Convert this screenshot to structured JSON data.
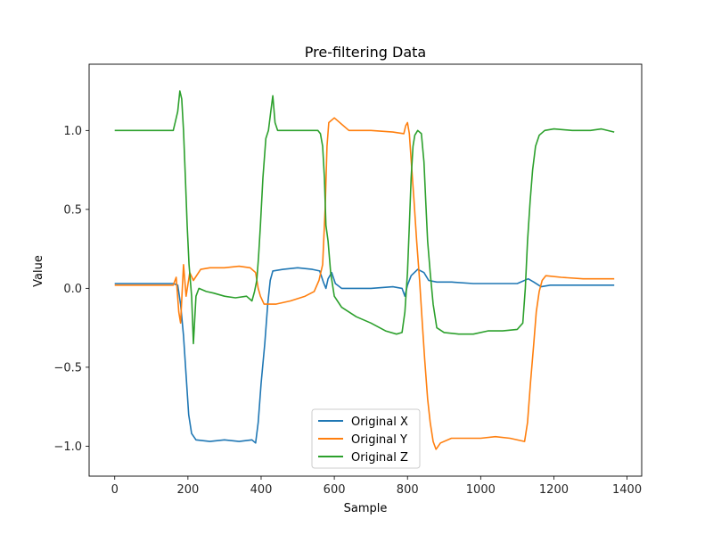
{
  "chart_data": {
    "type": "line",
    "title": "Pre-filtering Data",
    "xlabel": "Sample",
    "ylabel": "Value",
    "xlim": [
      -70,
      1440
    ],
    "ylim": [
      -1.19,
      1.42
    ],
    "xticks": [
      0,
      200,
      400,
      600,
      800,
      1000,
      1200,
      1400
    ],
    "xtick_labels": [
      "0",
      "200",
      "400",
      "600",
      "800",
      "1000",
      "1200",
      "1400"
    ],
    "yticks": [
      -1.0,
      -0.5,
      0.0,
      0.5,
      1.0
    ],
    "ytick_labels": [
      "−1.0",
      "−0.5",
      "0.0",
      "0.5",
      "1.0"
    ],
    "grid": false,
    "legend_position": "bottom-center",
    "series": [
      {
        "name": "Original X",
        "color": "#1f77b4",
        "points": [
          [
            0,
            0.03
          ],
          [
            160,
            0.03
          ],
          [
            172,
            0.02
          ],
          [
            180,
            -0.1
          ],
          [
            188,
            -0.3
          ],
          [
            195,
            -0.55
          ],
          [
            202,
            -0.8
          ],
          [
            210,
            -0.92
          ],
          [
            222,
            -0.96
          ],
          [
            260,
            -0.97
          ],
          [
            300,
            -0.96
          ],
          [
            340,
            -0.97
          ],
          [
            375,
            -0.96
          ],
          [
            385,
            -0.98
          ],
          [
            392,
            -0.85
          ],
          [
            400,
            -0.6
          ],
          [
            410,
            -0.35
          ],
          [
            418,
            -0.1
          ],
          [
            425,
            0.05
          ],
          [
            432,
            0.11
          ],
          [
            460,
            0.12
          ],
          [
            500,
            0.13
          ],
          [
            540,
            0.12
          ],
          [
            560,
            0.11
          ],
          [
            570,
            0.04
          ],
          [
            577,
            0.0
          ],
          [
            583,
            0.06
          ],
          [
            593,
            0.1
          ],
          [
            603,
            0.03
          ],
          [
            620,
            0.0
          ],
          [
            660,
            0.0
          ],
          [
            700,
            0.0
          ],
          [
            760,
            0.01
          ],
          [
            785,
            0.0
          ],
          [
            793,
            -0.05
          ],
          [
            800,
            0.02
          ],
          [
            810,
            0.08
          ],
          [
            828,
            0.12
          ],
          [
            845,
            0.1
          ],
          [
            858,
            0.05
          ],
          [
            880,
            0.04
          ],
          [
            920,
            0.04
          ],
          [
            980,
            0.03
          ],
          [
            1040,
            0.03
          ],
          [
            1100,
            0.03
          ],
          [
            1130,
            0.06
          ],
          [
            1145,
            0.04
          ],
          [
            1165,
            0.01
          ],
          [
            1190,
            0.02
          ],
          [
            1250,
            0.02
          ],
          [
            1300,
            0.02
          ],
          [
            1365,
            0.02
          ]
        ]
      },
      {
        "name": "Original Y",
        "color": "#ff7f0e",
        "points": [
          [
            0,
            0.02
          ],
          [
            160,
            0.02
          ],
          [
            168,
            0.07
          ],
          [
            175,
            -0.15
          ],
          [
            180,
            -0.22
          ],
          [
            188,
            0.15
          ],
          [
            195,
            -0.05
          ],
          [
            205,
            0.1
          ],
          [
            215,
            0.05
          ],
          [
            235,
            0.12
          ],
          [
            260,
            0.13
          ],
          [
            300,
            0.13
          ],
          [
            340,
            0.14
          ],
          [
            370,
            0.13
          ],
          [
            385,
            0.1
          ],
          [
            392,
            0.0
          ],
          [
            398,
            -0.05
          ],
          [
            408,
            -0.1
          ],
          [
            440,
            -0.1
          ],
          [
            480,
            -0.08
          ],
          [
            520,
            -0.05
          ],
          [
            545,
            -0.02
          ],
          [
            558,
            0.05
          ],
          [
            568,
            0.15
          ],
          [
            575,
            0.5
          ],
          [
            580,
            0.9
          ],
          [
            585,
            1.05
          ],
          [
            600,
            1.08
          ],
          [
            640,
            1.0
          ],
          [
            700,
            1.0
          ],
          [
            760,
            0.99
          ],
          [
            790,
            0.98
          ],
          [
            795,
            1.03
          ],
          [
            800,
            1.05
          ],
          [
            805,
            0.98
          ],
          [
            808,
            0.88
          ],
          [
            812,
            0.75
          ],
          [
            818,
            0.55
          ],
          [
            825,
            0.3
          ],
          [
            833,
            0.05
          ],
          [
            840,
            -0.2
          ],
          [
            847,
            -0.45
          ],
          [
            855,
            -0.7
          ],
          [
            862,
            -0.85
          ],
          [
            870,
            -0.97
          ],
          [
            878,
            -1.02
          ],
          [
            890,
            -0.98
          ],
          [
            920,
            -0.95
          ],
          [
            960,
            -0.95
          ],
          [
            1000,
            -0.95
          ],
          [
            1040,
            -0.94
          ],
          [
            1080,
            -0.95
          ],
          [
            1120,
            -0.97
          ],
          [
            1128,
            -0.85
          ],
          [
            1136,
            -0.6
          ],
          [
            1145,
            -0.35
          ],
          [
            1152,
            -0.15
          ],
          [
            1160,
            -0.02
          ],
          [
            1168,
            0.05
          ],
          [
            1178,
            0.08
          ],
          [
            1220,
            0.07
          ],
          [
            1280,
            0.06
          ],
          [
            1330,
            0.06
          ],
          [
            1365,
            0.06
          ]
        ]
      },
      {
        "name": "Original Z",
        "color": "#2ca02c",
        "points": [
          [
            0,
            1.0
          ],
          [
            40,
            1.0
          ],
          [
            100,
            1.0
          ],
          [
            160,
            1.0
          ],
          [
            165,
            1.05
          ],
          [
            172,
            1.12
          ],
          [
            178,
            1.25
          ],
          [
            183,
            1.2
          ],
          [
            188,
            1.0
          ],
          [
            193,
            0.7
          ],
          [
            198,
            0.4
          ],
          [
            203,
            0.15
          ],
          [
            210,
            -0.05
          ],
          [
            215,
            -0.35
          ],
          [
            222,
            -0.05
          ],
          [
            230,
            0.0
          ],
          [
            250,
            -0.02
          ],
          [
            270,
            -0.03
          ],
          [
            300,
            -0.05
          ],
          [
            330,
            -0.06
          ],
          [
            360,
            -0.05
          ],
          [
            375,
            -0.08
          ],
          [
            382,
            -0.02
          ],
          [
            388,
            0.05
          ],
          [
            393,
            0.2
          ],
          [
            398,
            0.4
          ],
          [
            405,
            0.7
          ],
          [
            413,
            0.95
          ],
          [
            420,
            1.0
          ],
          [
            428,
            1.15
          ],
          [
            432,
            1.22
          ],
          [
            438,
            1.05
          ],
          [
            445,
            1.0
          ],
          [
            480,
            1.0
          ],
          [
            520,
            1.0
          ],
          [
            555,
            1.0
          ],
          [
            562,
            0.98
          ],
          [
            568,
            0.9
          ],
          [
            573,
            0.7
          ],
          [
            577,
            0.4
          ],
          [
            583,
            0.3
          ],
          [
            590,
            0.1
          ],
          [
            600,
            -0.05
          ],
          [
            620,
            -0.12
          ],
          [
            660,
            -0.18
          ],
          [
            700,
            -0.22
          ],
          [
            740,
            -0.27
          ],
          [
            770,
            -0.29
          ],
          [
            785,
            -0.28
          ],
          [
            793,
            -0.15
          ],
          [
            800,
            0.1
          ],
          [
            805,
            0.4
          ],
          [
            810,
            0.7
          ],
          [
            815,
            0.9
          ],
          [
            820,
            0.97
          ],
          [
            828,
            1.0
          ],
          [
            838,
            0.98
          ],
          [
            845,
            0.8
          ],
          [
            850,
            0.55
          ],
          [
            855,
            0.3
          ],
          [
            862,
            0.1
          ],
          [
            870,
            -0.1
          ],
          [
            880,
            -0.25
          ],
          [
            900,
            -0.28
          ],
          [
            940,
            -0.29
          ],
          [
            980,
            -0.29
          ],
          [
            1020,
            -0.27
          ],
          [
            1060,
            -0.27
          ],
          [
            1100,
            -0.26
          ],
          [
            1115,
            -0.22
          ],
          [
            1122,
            0.0
          ],
          [
            1128,
            0.3
          ],
          [
            1135,
            0.55
          ],
          [
            1142,
            0.75
          ],
          [
            1150,
            0.9
          ],
          [
            1160,
            0.97
          ],
          [
            1175,
            1.0
          ],
          [
            1200,
            1.01
          ],
          [
            1250,
            1.0
          ],
          [
            1300,
            1.0
          ],
          [
            1330,
            1.01
          ],
          [
            1365,
            0.99
          ]
        ]
      }
    ]
  }
}
